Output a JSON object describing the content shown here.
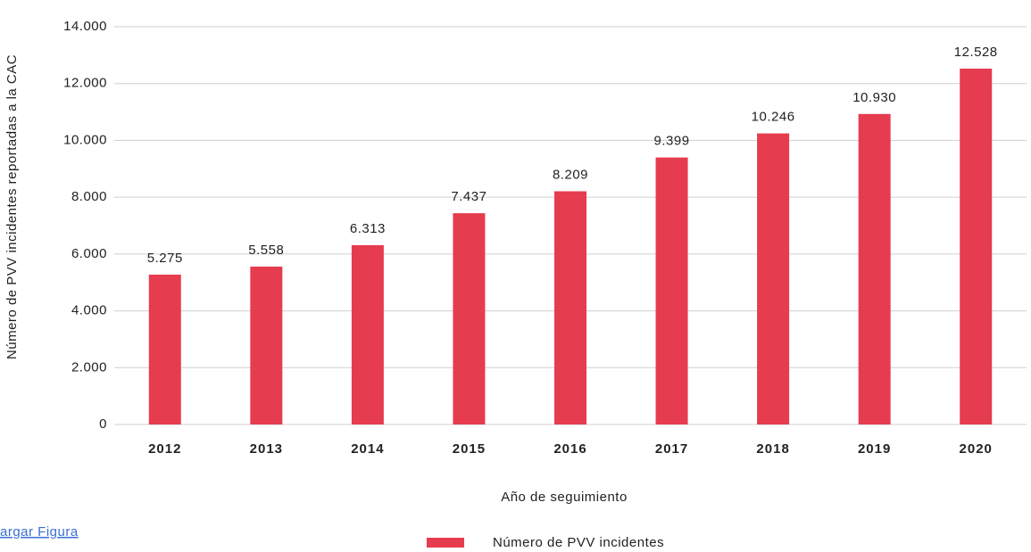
{
  "chart_data": {
    "type": "bar",
    "categories": [
      "2012",
      "2013",
      "2014",
      "2015",
      "2016",
      "2017",
      "2018",
      "2019",
      "2020"
    ],
    "series": [
      {
        "name": "Número de PVV incidentes",
        "color": "#e63c50",
        "values": [
          5275,
          5558,
          6313,
          7437,
          8209,
          9399,
          10246,
          10930,
          12528
        ],
        "value_labels": [
          "5.275",
          "5.558",
          "6.313",
          "7.437",
          "8.209",
          "9.399",
          "10.246",
          "10.930",
          "12.528"
        ]
      }
    ],
    "ylim": [
      0,
      14000
    ],
    "yticks": [
      0,
      {
        "value": 2000,
        "label": "2.000"
      },
      {
        "value": 4000,
        "label": "4.000"
      },
      {
        "value": 6000,
        "label": "6.000"
      },
      {
        "value": 8000,
        "label": "8.000"
      },
      {
        "value": 10000,
        "label": "10.000"
      },
      {
        "value": 12000,
        "label": "12.000"
      },
      {
        "value": 14000,
        "label": "14.000"
      }
    ],
    "y_label": "Número de PVV incidentes reportadas a la CAC",
    "x_label": "Año de seguimiento",
    "grid": true,
    "legend": "bottom"
  },
  "link_text": "argar Figura"
}
